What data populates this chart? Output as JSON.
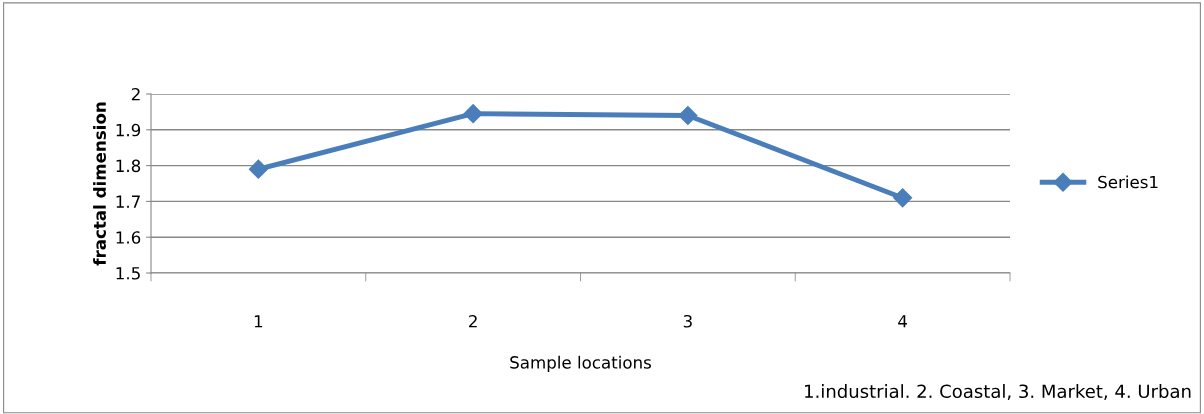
{
  "chart_data": {
    "type": "line",
    "xlabel": "Sample locations",
    "ylabel": "fractal dimension",
    "categories": [
      "1",
      "2",
      "3",
      "4"
    ],
    "series": [
      {
        "name": "Series1",
        "color": "#4a7ebb",
        "values": [
          1.79,
          1.945,
          1.94,
          1.71
        ]
      }
    ],
    "ylim": [
      1.5,
      2
    ],
    "yticks": [
      1.5,
      1.6,
      1.7,
      1.8,
      1.9,
      2
    ],
    "grid": "y",
    "legend": "right",
    "marker": "diamond",
    "line_style": "solid",
    "annotations": [
      "1.industrial. 2. Coastal, 3. Market, 4. Urban"
    ]
  }
}
